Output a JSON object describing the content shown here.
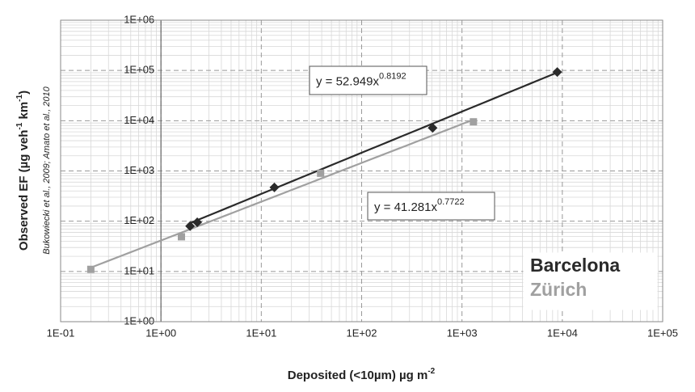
{
  "chart_data": {
    "type": "scatter",
    "xlabel": "Deposited (<10µm) µg m",
    "xlabel_superscript": "-2",
    "ylabel_parts": [
      "Observed EF (µg veh",
      "-1",
      " km",
      "-1",
      ")"
    ],
    "side_note": "Bukowiecki et al., 2009; Amato et al., 2010",
    "log_x": true,
    "log_y": true,
    "grid": true,
    "minor_grid": true,
    "legend": "lower right",
    "xlim": [
      0.1,
      100000
    ],
    "ylim": [
      1,
      1000000
    ],
    "xticks": [
      {
        "value": 0.1,
        "label": "1E-01"
      },
      {
        "value": 1,
        "label": "1E+00"
      },
      {
        "value": 10,
        "label": "1E+01"
      },
      {
        "value": 100,
        "label": "1E+02"
      },
      {
        "value": 1000,
        "label": "1E+03"
      },
      {
        "value": 10000,
        "label": "1E+04"
      },
      {
        "value": 100000,
        "label": "1E+05"
      }
    ],
    "yticks": [
      {
        "value": 1,
        "label": "1E+00"
      },
      {
        "value": 10,
        "label": "1E+01"
      },
      {
        "value": 100,
        "label": "1E+02"
      },
      {
        "value": 1000,
        "label": "1E+03"
      },
      {
        "value": 10000,
        "label": "1E+04"
      },
      {
        "value": 100000,
        "label": "1E+05"
      },
      {
        "value": 1000000,
        "label": "1E+06"
      }
    ],
    "series": [
      {
        "name": "Barcelona",
        "color": "#2a2a2a",
        "marker": "diamond",
        "x": [
          1.95,
          2.3,
          13.5,
          510,
          8900
        ],
        "values": [
          80,
          95,
          470,
          7200,
          93000
        ],
        "trendline": {
          "label": "y = 52.949x",
          "coefficient": 52.949,
          "exponent": 0.8192
        }
      },
      {
        "name": "Zürich",
        "color": "#a0a0a0",
        "marker": "square",
        "x": [
          0.2,
          1.6,
          39,
          1300
        ],
        "values": [
          11,
          49,
          900,
          9500
        ],
        "trendline": {
          "label": "y = 41.281x",
          "coefficient": 41.281,
          "exponent": 0.7722
        }
      }
    ]
  }
}
